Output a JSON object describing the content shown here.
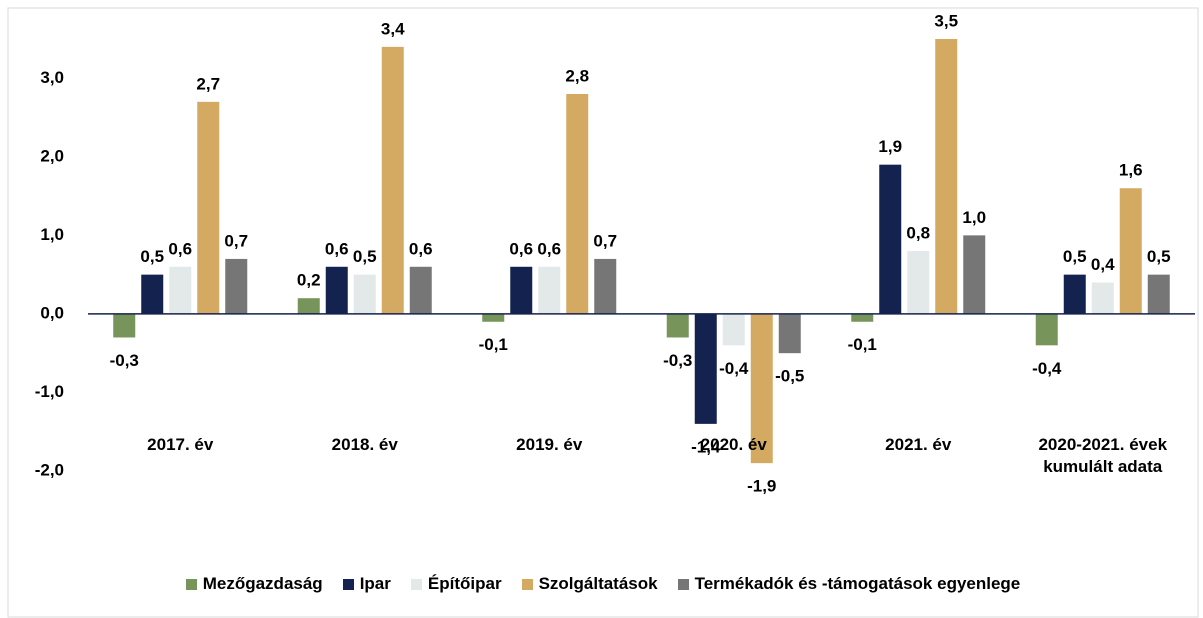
{
  "chart_data": {
    "type": "bar",
    "categories": [
      "2017. év",
      "2018. év",
      "2019. év",
      "2020. év",
      "2021. év",
      "2020-2021. évek kumulált adata"
    ],
    "series": [
      {
        "name": "Mezőgazdaság",
        "color": "#77945a",
        "values": [
          -0.3,
          0.2,
          -0.1,
          -0.3,
          -0.1,
          -0.4
        ],
        "value_labels": [
          "-0,3",
          "0,2",
          "-0,1",
          "-0,3",
          "-0,1",
          "-0,4"
        ]
      },
      {
        "name": "Ipar",
        "color": "#14224f",
        "values": [
          0.5,
          0.6,
          0.6,
          -1.4,
          1.9,
          0.5
        ],
        "value_labels": [
          "0,5",
          "0,6",
          "0,6",
          "-1,4",
          "1,9",
          "0,5"
        ]
      },
      {
        "name": "Építőipar",
        "color": "#e2e9e8",
        "values": [
          0.6,
          0.5,
          0.6,
          -0.4,
          0.8,
          0.4
        ],
        "value_labels": [
          "0,6",
          "0,5",
          "0,6",
          "-0,4",
          "0,8",
          "0,4"
        ]
      },
      {
        "name": "Szolgáltatások",
        "color": "#d4a962",
        "values": [
          2.7,
          3.4,
          2.8,
          -1.9,
          3.5,
          1.6
        ],
        "value_labels": [
          "2,7",
          "3,4",
          "2,8",
          "-1,9",
          "3,5",
          "1,6"
        ]
      },
      {
        "name": "Termékadók és -támogatások egyenlege",
        "color": "#767676",
        "values": [
          0.7,
          0.6,
          0.7,
          -0.5,
          1.0,
          0.5
        ],
        "value_labels": [
          "0,7",
          "0,6",
          "0,7",
          "-0,5",
          "1,0",
          "0,5"
        ]
      }
    ],
    "ylim": [
      -2,
      3.5
    ],
    "yticks": [
      {
        "value": -2,
        "label": "-2,0"
      },
      {
        "value": -1,
        "label": "-1,0"
      },
      {
        "value": 0,
        "label": "0,0"
      },
      {
        "value": 1,
        "label": "1,0"
      },
      {
        "value": 2,
        "label": "2,0"
      },
      {
        "value": 3,
        "label": "3,0"
      }
    ],
    "grid": false,
    "legend": "bottom"
  }
}
